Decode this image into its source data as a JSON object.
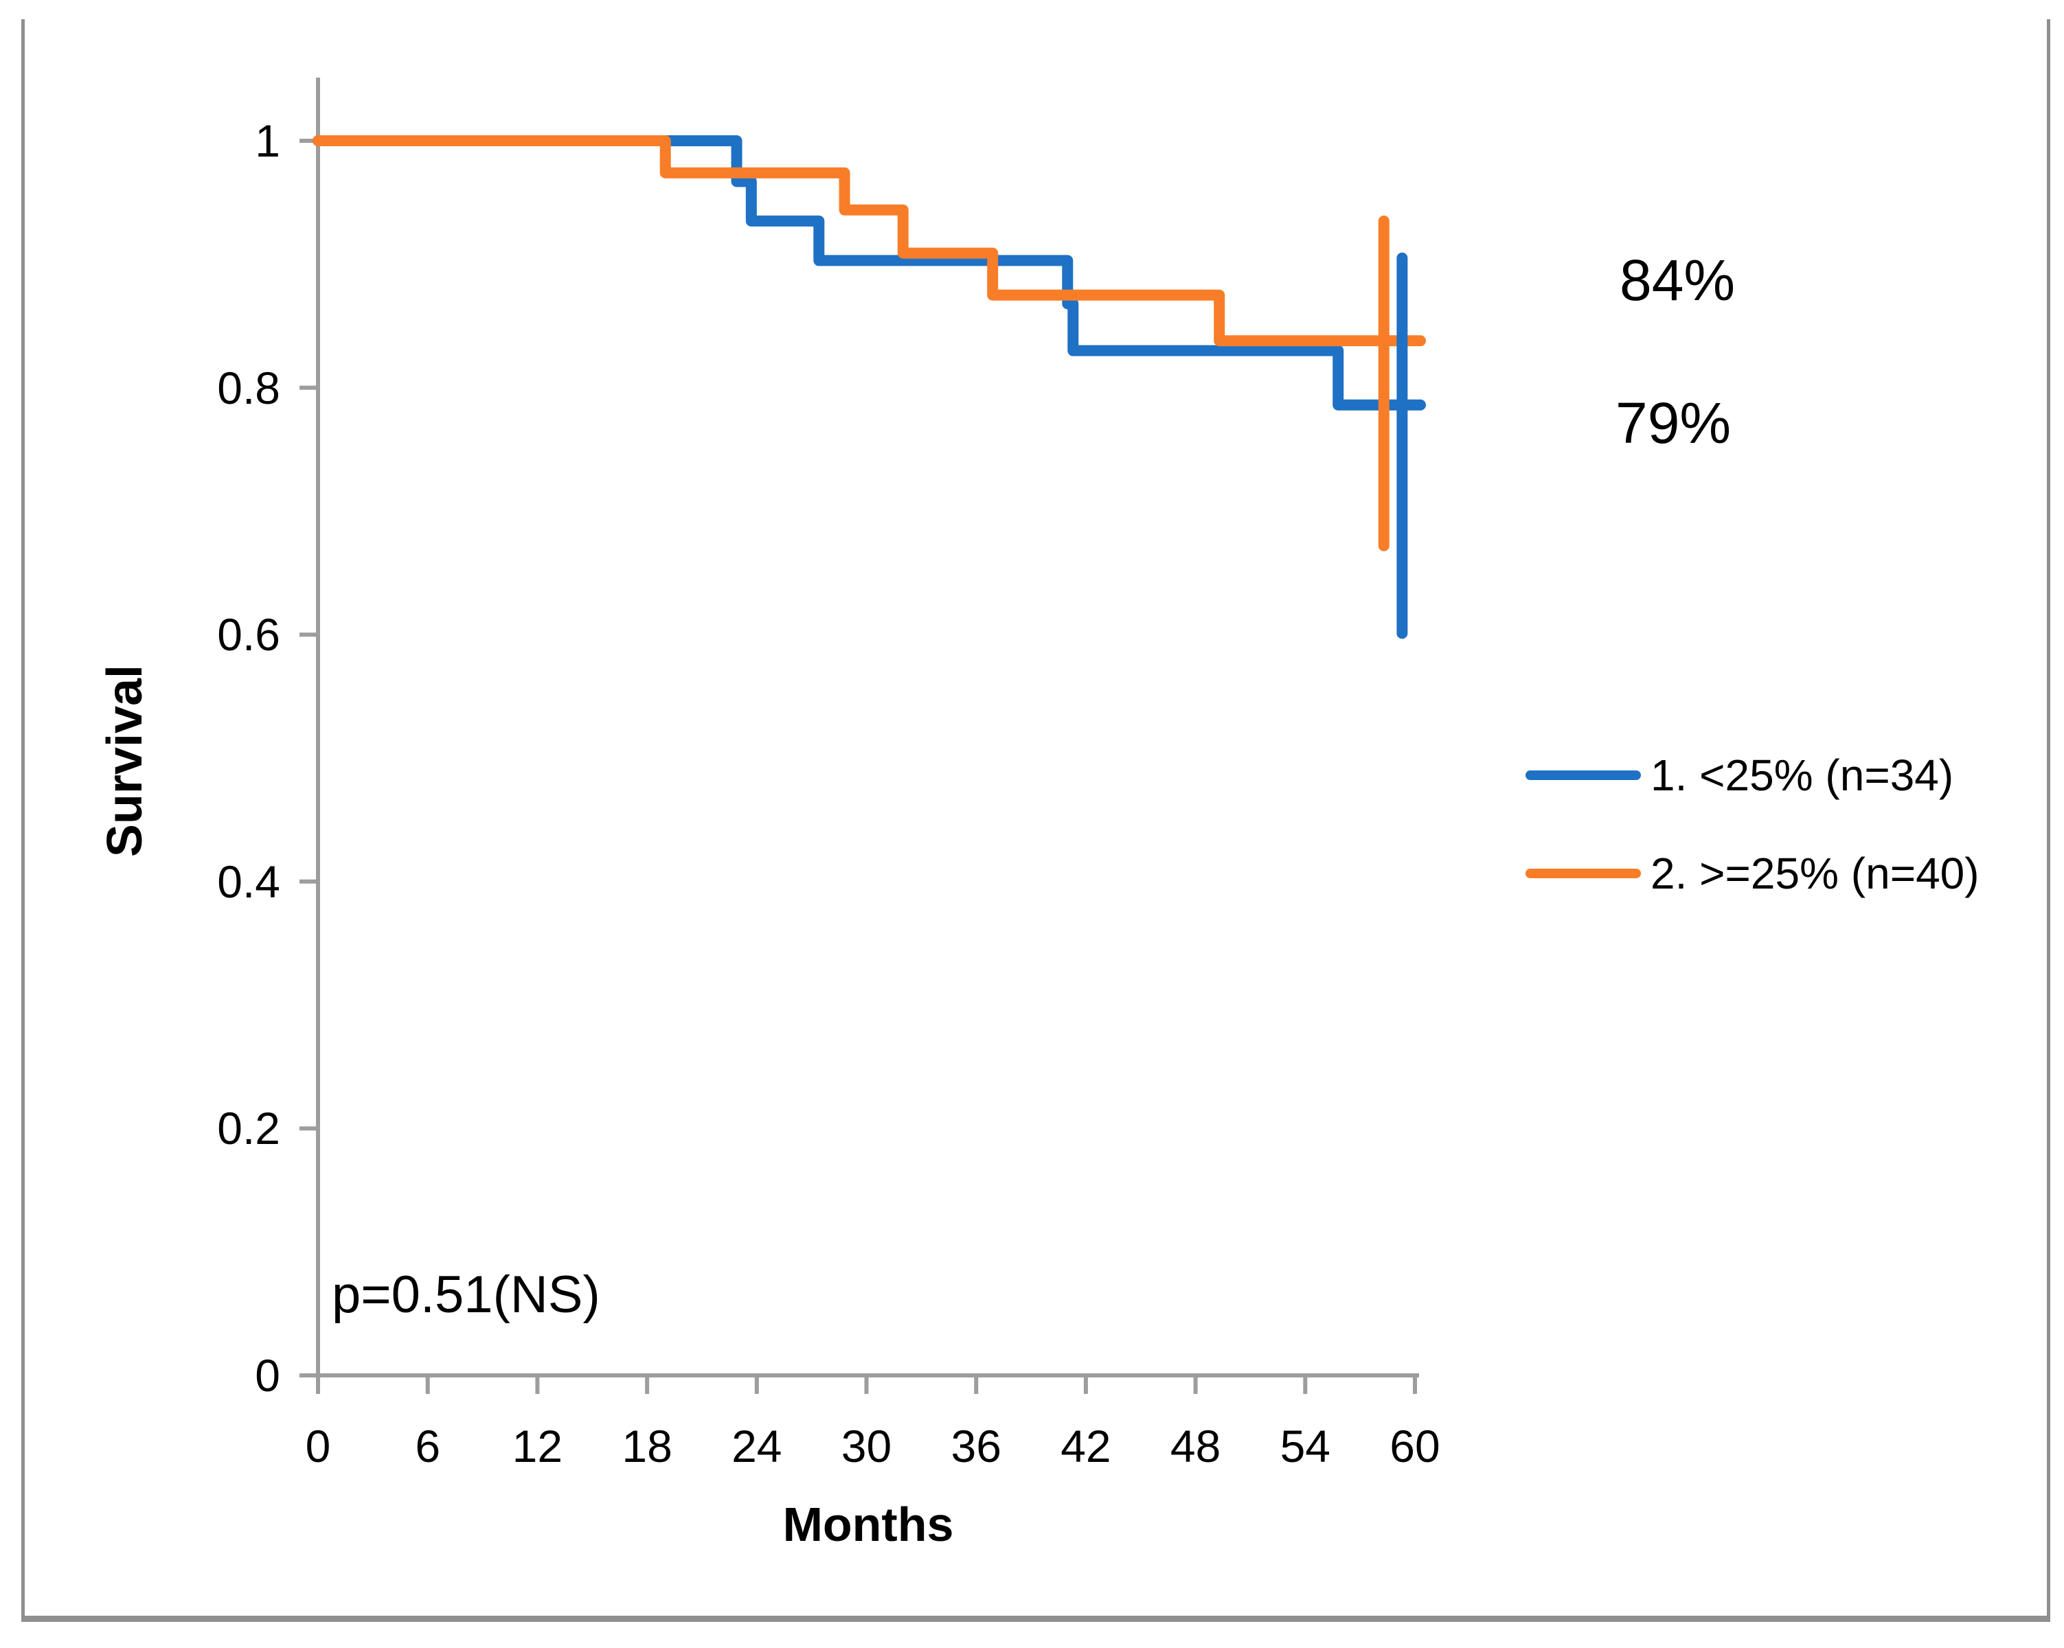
{
  "figure": {
    "background": "#ffffff",
    "border_color": "#8F8F8F"
  },
  "chart_data": {
    "type": "line",
    "subtype": "kaplan-meier-step",
    "title": "",
    "xlabel": "Months",
    "ylabel": "Survival",
    "xlim": [
      0,
      60
    ],
    "ylim": [
      0,
      1
    ],
    "grid": false,
    "legend_position": "center-right",
    "axis_color": "#9D9D9D",
    "x_ticks": [
      {
        "value": 0,
        "label": "0"
      },
      {
        "value": 6,
        "label": "6"
      },
      {
        "value": 12,
        "label": "12"
      },
      {
        "value": 18,
        "label": "18"
      },
      {
        "value": 24,
        "label": "24"
      },
      {
        "value": 30,
        "label": "30"
      },
      {
        "value": 36,
        "label": "36"
      },
      {
        "value": 42,
        "label": "42"
      },
      {
        "value": 48,
        "label": "48"
      },
      {
        "value": 54,
        "label": "54"
      },
      {
        "value": 60,
        "label": "60"
      }
    ],
    "y_ticks": [
      {
        "value": 1,
        "label": "1"
      },
      {
        "value": 0.8,
        "label": "0.8"
      },
      {
        "value": 0.6,
        "label": "0.6"
      },
      {
        "value": 0.4,
        "label": "0.4"
      },
      {
        "value": 0.2,
        "label": "0.2"
      },
      {
        "value": 0,
        "label": "0"
      }
    ],
    "series": [
      {
        "name": "1. <25% (n=34)",
        "color": "#1E71C4",
        "start": [
          0,
          1.0
        ],
        "events": [
          [
            22.9,
            0.967
          ],
          [
            23.7,
            0.935
          ],
          [
            27.4,
            0.903
          ],
          [
            41.0,
            0.868
          ],
          [
            41.3,
            0.83
          ],
          [
            55.8,
            0.786
          ]
        ],
        "end_month": 60.3,
        "error_bar": {
          "month": 59.3,
          "top": 0.905,
          "bottom": 0.601
        }
      },
      {
        "name": "2. >=25% (n=40)",
        "color": "#F87D28",
        "start": [
          0,
          1.0
        ],
        "events": [
          [
            19.0,
            0.974
          ],
          [
            28.8,
            0.944
          ],
          [
            32.0,
            0.909
          ],
          [
            36.9,
            0.875
          ],
          [
            49.3,
            0.838
          ]
        ],
        "end_month": 60.3,
        "error_bar": {
          "month": 58.3,
          "top": 0.935,
          "bottom": 0.672
        }
      }
    ],
    "annotations": {
      "orange_end_label": "84%",
      "blue_end_label": "79%",
      "p_value": "p=0.51(NS)"
    }
  }
}
